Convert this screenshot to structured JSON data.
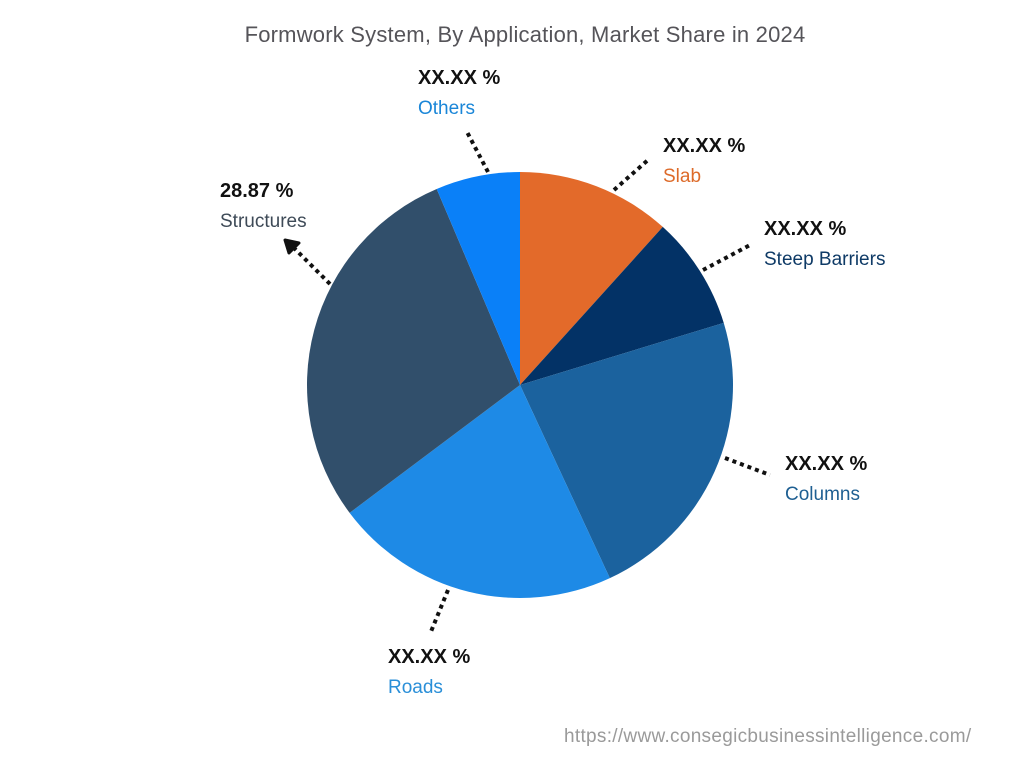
{
  "title": "Formwork System, By Application, Market Share in 2024",
  "footer": "https://www.consegicbusinessintelligence.com/",
  "labels": {
    "others": {
      "value": "XX.XX %",
      "name": "Others",
      "color": "#1a86d8"
    },
    "slab": {
      "value": "XX.XX %",
      "name": "Slab",
      "color": "#dd6b2a"
    },
    "steep": {
      "value": "XX.XX %",
      "name": "Steep Barriers",
      "color": "#0e3a66"
    },
    "structures": {
      "value": "28.87 %",
      "name": "Structures",
      "color": "#3e4a57"
    },
    "columns": {
      "value": "XX.XX %",
      "name": "Columns",
      "color": "#1e5f92"
    },
    "roads": {
      "value": "XX.XX %",
      "name": "Roads",
      "color": "#2a8fd8"
    }
  },
  "chart_data": {
    "type": "pie",
    "title": "Formwork System, By Application, Market Share in 2024",
    "categories": [
      "Slab",
      "Steep Barriers",
      "Columns",
      "Roads",
      "Structures",
      "Others"
    ],
    "values": [
      11.7,
      8.6,
      22.8,
      21.7,
      28.87,
      6.4
    ],
    "value_labels": [
      "XX.XX %",
      "XX.XX %",
      "XX.XX %",
      "XX.XX %",
      "28.87 %",
      "XX.XX %"
    ],
    "colors": [
      "#e36a2a",
      "#033266",
      "#1b629e",
      "#1e8ae6",
      "#314f6b",
      "#0a80f8"
    ],
    "start_angle_deg": 0,
    "direction": "clockwise",
    "legend": "callout labels with dotted leader lines",
    "source": "https://www.consegicbusinessintelligence.com/"
  }
}
